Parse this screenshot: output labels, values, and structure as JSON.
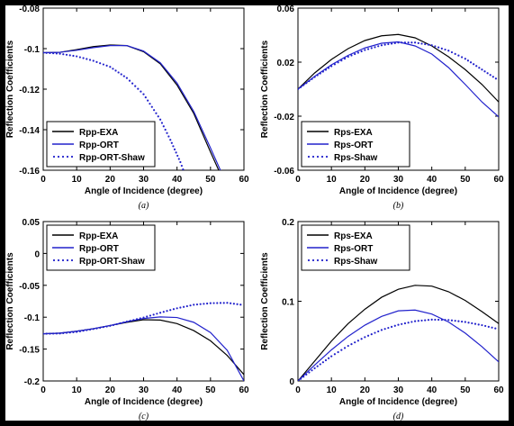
{
  "chart_data": [
    {
      "type": "line",
      "panel": "a",
      "caption": "(a)",
      "xlabel": "Angle of Incidence (degree)",
      "ylabel": "Reflection Coefficients",
      "xlim": [
        0,
        60
      ],
      "ylim": [
        -0.16,
        -0.08
      ],
      "xticks": [
        0,
        10,
        20,
        30,
        40,
        50,
        60
      ],
      "yticks": [
        -0.16,
        -0.14,
        -0.12,
        -0.1,
        -0.08
      ],
      "yticklabels": [
        "-0.16",
        "-0.14",
        "-0.12",
        "-0.1",
        "-0.08"
      ],
      "legend_position": "bottom-left",
      "series": [
        {
          "name": "Rpp-EXA",
          "style": "solid",
          "color": "#000000",
          "x": [
            0,
            5,
            10,
            15,
            20,
            25,
            30,
            35,
            40,
            45,
            50,
            53
          ],
          "y": [
            -0.102,
            -0.1018,
            -0.1005,
            -0.099,
            -0.0982,
            -0.0985,
            -0.1015,
            -0.1075,
            -0.118,
            -0.132,
            -0.151,
            -0.162
          ]
        },
        {
          "name": "Rpp-ORT",
          "style": "solid",
          "color": "#2222cc",
          "x": [
            0,
            5,
            10,
            15,
            20,
            25,
            30,
            35,
            40,
            45,
            50,
            53.5
          ],
          "y": [
            -0.102,
            -0.1018,
            -0.1008,
            -0.0995,
            -0.0985,
            -0.0985,
            -0.1012,
            -0.107,
            -0.117,
            -0.131,
            -0.149,
            -0.162
          ]
        },
        {
          "name": "Rpp-ORT-Shaw",
          "style": "dotted",
          "color": "#2222cc",
          "x": [
            0,
            5,
            10,
            15,
            20,
            25,
            30,
            35,
            38,
            41,
            43
          ],
          "y": [
            -0.102,
            -0.1025,
            -0.1038,
            -0.106,
            -0.109,
            -0.1145,
            -0.1225,
            -0.135,
            -0.145,
            -0.156,
            -0.165
          ]
        }
      ]
    },
    {
      "type": "line",
      "panel": "b",
      "caption": "(b)",
      "xlabel": "Angle of Incidence (degree)",
      "ylabel": "Reflection Coefficients",
      "xlim": [
        0,
        60
      ],
      "ylim": [
        -0.06,
        0.06
      ],
      "xticks": [
        0,
        10,
        20,
        30,
        40,
        50,
        60
      ],
      "yticks": [
        -0.06,
        -0.02,
        0.02,
        0.06
      ],
      "yticklabels": [
        "-0.06",
        "-0.02",
        "0.02",
        "0.06"
      ],
      "legend_position": "bottom-left",
      "series": [
        {
          "name": "Rps-EXA",
          "style": "solid",
          "color": "#000000",
          "x": [
            0,
            5,
            10,
            15,
            20,
            25,
            30,
            35,
            40,
            45,
            50,
            55,
            60
          ],
          "y": [
            0.0,
            0.012,
            0.022,
            0.03,
            0.036,
            0.0395,
            0.0405,
            0.038,
            0.032,
            0.024,
            0.0145,
            0.0035,
            -0.0095
          ]
        },
        {
          "name": "Rps-ORT",
          "style": "solid",
          "color": "#2222cc",
          "x": [
            0,
            5,
            10,
            15,
            20,
            25,
            30,
            35,
            40,
            45,
            50,
            55,
            60
          ],
          "y": [
            0.0,
            0.0095,
            0.018,
            0.025,
            0.0305,
            0.034,
            0.035,
            0.032,
            0.026,
            0.016,
            0.0035,
            -0.0095,
            -0.0205
          ]
        },
        {
          "name": "Rps-Shaw",
          "style": "dotted",
          "color": "#2222cc",
          "x": [
            0,
            5,
            10,
            15,
            20,
            25,
            30,
            35,
            40,
            45,
            50,
            55,
            60
          ],
          "y": [
            0.0,
            0.009,
            0.017,
            0.024,
            0.029,
            0.0325,
            0.0345,
            0.0345,
            0.0325,
            0.0285,
            0.0225,
            0.0145,
            0.0065
          ]
        }
      ]
    },
    {
      "type": "line",
      "panel": "c",
      "caption": "(c)",
      "xlabel": "Angle of Incidence (degree)",
      "ylabel": "Reflection Coefficients",
      "xlim": [
        0,
        60
      ],
      "ylim": [
        -0.2,
        0.05
      ],
      "xticks": [
        0,
        10,
        20,
        30,
        40,
        50,
        60
      ],
      "yticks": [
        -0.2,
        -0.15,
        -0.1,
        -0.05,
        0,
        0.05
      ],
      "yticklabels": [
        "-0.2",
        "-0.15",
        "-0.1",
        "-0.05",
        "0",
        "0.05"
      ],
      "legend_position": "top-left",
      "series": [
        {
          "name": "Rpp-EXA",
          "style": "solid",
          "color": "#000000",
          "x": [
            0,
            5,
            10,
            15,
            20,
            25,
            30,
            35,
            40,
            45,
            50,
            55,
            60
          ],
          "y": [
            -0.126,
            -0.125,
            -0.122,
            -0.118,
            -0.113,
            -0.108,
            -0.104,
            -0.1045,
            -0.11,
            -0.121,
            -0.137,
            -0.16,
            -0.19
          ]
        },
        {
          "name": "Rpp-ORT",
          "style": "solid",
          "color": "#2222cc",
          "x": [
            0,
            5,
            10,
            15,
            20,
            25,
            30,
            35,
            40,
            45,
            50,
            55,
            60
          ],
          "y": [
            -0.126,
            -0.125,
            -0.122,
            -0.118,
            -0.113,
            -0.107,
            -0.102,
            -0.0995,
            -0.1005,
            -0.108,
            -0.124,
            -0.152,
            -0.2
          ]
        },
        {
          "name": "Rpp-ORT-Shaw",
          "style": "dotted",
          "color": "#2222cc",
          "x": [
            0,
            5,
            10,
            15,
            20,
            25,
            30,
            35,
            40,
            45,
            50,
            55,
            60
          ],
          "y": [
            -0.126,
            -0.1255,
            -0.123,
            -0.1185,
            -0.1135,
            -0.107,
            -0.1005,
            -0.093,
            -0.086,
            -0.0805,
            -0.078,
            -0.0775,
            -0.081
          ]
        }
      ]
    },
    {
      "type": "line",
      "panel": "d",
      "caption": "(d)",
      "xlabel": "Angle of Incidence (degree)",
      "ylabel": "Reflection Coefficients",
      "xlim": [
        0,
        60
      ],
      "ylim": [
        0,
        0.2
      ],
      "xticks": [
        0,
        10,
        20,
        30,
        40,
        50,
        60
      ],
      "yticks": [
        0,
        0.1,
        0.2
      ],
      "yticklabels": [
        "0",
        "0.1",
        "0.2"
      ],
      "legend_position": "top-left",
      "series": [
        {
          "name": "Rps-EXA",
          "style": "solid",
          "color": "#000000",
          "x": [
            0,
            5,
            10,
            15,
            20,
            25,
            30,
            35,
            40,
            45,
            50,
            55,
            60
          ],
          "y": [
            0.0,
            0.025,
            0.05,
            0.072,
            0.09,
            0.105,
            0.115,
            0.12,
            0.119,
            0.112,
            0.101,
            0.087,
            0.072
          ]
        },
        {
          "name": "Rps-ORT",
          "style": "solid",
          "color": "#2222cc",
          "x": [
            0,
            5,
            10,
            15,
            20,
            25,
            30,
            35,
            40,
            45,
            50,
            55,
            60
          ],
          "y": [
            0.0,
            0.02,
            0.039,
            0.056,
            0.07,
            0.081,
            0.088,
            0.089,
            0.084,
            0.074,
            0.06,
            0.043,
            0.024
          ]
        },
        {
          "name": "Rps-Shaw",
          "style": "dotted",
          "color": "#2222cc",
          "x": [
            0,
            5,
            10,
            15,
            20,
            25,
            30,
            35,
            40,
            45,
            50,
            55,
            60
          ],
          "y": [
            0.0,
            0.016,
            0.031,
            0.044,
            0.055,
            0.064,
            0.0705,
            0.075,
            0.077,
            0.0765,
            0.074,
            0.07,
            0.065
          ]
        }
      ]
    }
  ]
}
